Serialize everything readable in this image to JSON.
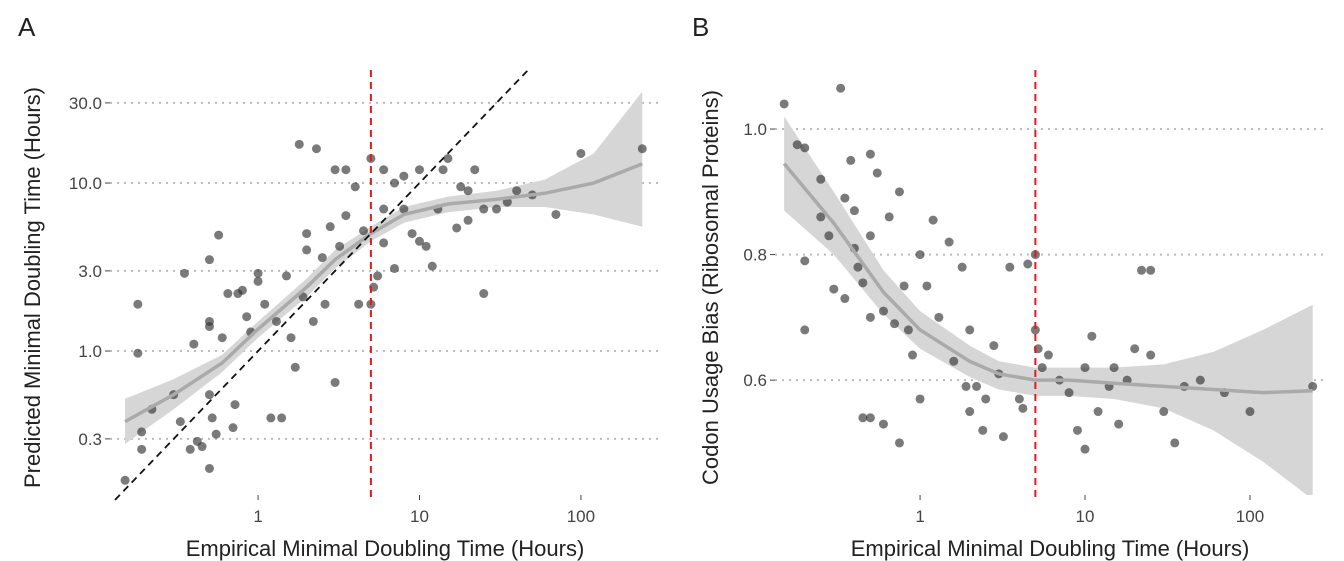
{
  "chart_data": [
    {
      "type": "scatter",
      "label": "A",
      "xlabel": "Empirical Minimal Doubling Time (Hours)",
      "ylabel": "Predicted Minimal Doubling Time (Hours)",
      "xscale": "log",
      "yscale": "log",
      "xlim": [
        0.121,
        309
      ],
      "ylim": [
        0.139,
        54
      ],
      "xticks": [
        1,
        10,
        100
      ],
      "yticks": [
        {
          "value": 0.3,
          "label": "0.3"
        },
        {
          "value": 1,
          "label": "1.0"
        },
        {
          "value": 3,
          "label": "3.0"
        },
        {
          "value": 10,
          "label": "10.0"
        },
        {
          "value": 30,
          "label": "30.0"
        }
      ],
      "grid": true,
      "color": "#333333",
      "vline": 5,
      "vline_color": "#e31a1c",
      "identity_range": [
        0.13,
        48
      ],
      "x": [
        0.15,
        0.18,
        0.18,
        0.19,
        0.19,
        0.22,
        0.3,
        0.33,
        0.35,
        0.38,
        0.4,
        0.42,
        0.45,
        0.5,
        0.5,
        0.5,
        0.5,
        0.5,
        0.52,
        0.55,
        0.57,
        0.6,
        0.65,
        0.7,
        0.72,
        0.75,
        0.8,
        0.85,
        0.9,
        1.0,
        1.0,
        1.1,
        1.2,
        1.3,
        1.4,
        1.5,
        1.6,
        1.7,
        1.8,
        1.9,
        2.0,
        2.0,
        2.2,
        2.3,
        2.5,
        2.6,
        2.8,
        3.0,
        3.0,
        3.2,
        3.5,
        3.5,
        4.0,
        4.2,
        4.5,
        5.0,
        5.0,
        5.2,
        5.5,
        6,
        6,
        6,
        7,
        7,
        8,
        8,
        9,
        10,
        10,
        11,
        12,
        13,
        14,
        15,
        17,
        18,
        20,
        20,
        22,
        25,
        25,
        30,
        35,
        40,
        50,
        70,
        100,
        240
      ],
      "values": [
        0.17,
        1.9,
        0.97,
        0.33,
        0.26,
        0.45,
        0.55,
        0.38,
        2.9,
        0.26,
        1.1,
        0.29,
        0.27,
        1.5,
        1.4,
        3.5,
        0.2,
        0.55,
        0.4,
        0.32,
        4.9,
        1.2,
        2.2,
        0.35,
        0.48,
        2.2,
        2.3,
        1.6,
        1.3,
        2.6,
        2.9,
        1.9,
        0.4,
        1.5,
        0.4,
        2.8,
        1.2,
        0.8,
        17,
        2.1,
        4.0,
        5.0,
        1.5,
        16,
        3.6,
        1.9,
        5.5,
        0.65,
        12,
        4.2,
        12,
        6.4,
        9.5,
        1.9,
        5.2,
        14,
        1.9,
        2.4,
        2.8,
        7,
        12,
        4.4,
        3.1,
        10,
        11,
        7,
        5,
        4.5,
        12,
        4.2,
        3.2,
        7,
        12,
        14,
        5.4,
        9.5,
        6,
        9,
        12,
        2.2,
        7,
        7,
        7.7,
        9,
        8.5,
        6.5,
        15,
        16
      ],
      "smooth": {
        "x": [
          0.15,
          0.3,
          0.6,
          1,
          2,
          3,
          5,
          8,
          15,
          30,
          60,
          120,
          240
        ],
        "y": [
          0.38,
          0.55,
          0.85,
          1.35,
          2.4,
          3.5,
          5,
          6.5,
          7.5,
          8,
          8.7,
          10,
          13
        ],
        "lower": [
          0.28,
          0.45,
          0.75,
          1.2,
          2.1,
          3.1,
          4.5,
          5.8,
          6.7,
          7.2,
          7.2,
          6.5,
          5.5
        ],
        "upper": [
          0.52,
          0.68,
          0.95,
          1.5,
          2.7,
          4,
          5.5,
          7.2,
          8.3,
          9,
          10.5,
          15,
          35
        ]
      }
    },
    {
      "type": "scatter",
      "label": "B",
      "xlabel": "Empirical Minimal Doubling Time (Hours)",
      "ylabel": "Codon Usage Bias (Ribosomal Proteins)",
      "xscale": "log",
      "yscale": "linear",
      "xlim": [
        0.132,
        285
      ],
      "ylim": [
        0.417,
        1.11
      ],
      "xticks": [
        1,
        10,
        100
      ],
      "yticks": [
        0.6,
        0.8,
        {
          "value": 1,
          "label": "1.0"
        }
      ],
      "grid": true,
      "color": "#333333",
      "vline": 5,
      "vline_color": "#e31a1c",
      "x": [
        0.15,
        0.18,
        0.2,
        0.2,
        0.2,
        0.25,
        0.25,
        0.28,
        0.3,
        0.33,
        0.35,
        0.35,
        0.38,
        0.4,
        0.4,
        0.42,
        0.45,
        0.45,
        0.5,
        0.5,
        0.5,
        0.5,
        0.55,
        0.6,
        0.6,
        0.65,
        0.7,
        0.75,
        0.75,
        0.8,
        0.85,
        0.9,
        1.0,
        1.0,
        1.1,
        1.2,
        1.3,
        1.5,
        1.6,
        1.8,
        1.9,
        2.0,
        2.0,
        2.2,
        2.4,
        2.5,
        2.8,
        3.0,
        3.2,
        3.5,
        4.0,
        4.2,
        4.5,
        5.0,
        5.0,
        5.2,
        5.5,
        6,
        7,
        8,
        9,
        10,
        10,
        11,
        12,
        14,
        15,
        16,
        18,
        20,
        22,
        25,
        25,
        30,
        35,
        40,
        50,
        70,
        100,
        240
      ],
      "values": [
        1.04,
        0.975,
        0.97,
        0.79,
        0.68,
        0.92,
        0.86,
        0.83,
        0.745,
        1.065,
        0.89,
        0.73,
        0.95,
        0.87,
        0.81,
        0.78,
        0.755,
        0.54,
        0.96,
        0.83,
        0.7,
        0.54,
        0.93,
        0.53,
        0.71,
        0.86,
        0.69,
        0.9,
        0.5,
        0.75,
        0.68,
        0.64,
        0.8,
        0.57,
        0.75,
        0.855,
        0.7,
        0.82,
        0.63,
        0.78,
        0.59,
        0.68,
        0.55,
        0.59,
        0.52,
        0.57,
        0.655,
        0.61,
        0.51,
        0.78,
        0.57,
        0.555,
        0.785,
        0.8,
        0.68,
        0.65,
        0.62,
        0.64,
        0.6,
        0.58,
        0.52,
        0.49,
        0.62,
        0.67,
        0.55,
        0.59,
        0.62,
        0.53,
        0.6,
        0.65,
        0.775,
        0.64,
        0.775,
        0.55,
        0.5,
        0.59,
        0.6,
        0.58,
        0.55,
        0.59
      ],
      "smooth": {
        "x": [
          0.15,
          0.3,
          0.6,
          1,
          2,
          3,
          5,
          8,
          15,
          30,
          60,
          120,
          240
        ],
        "y": [
          0.945,
          0.85,
          0.74,
          0.68,
          0.63,
          0.61,
          0.6,
          0.6,
          0.595,
          0.59,
          0.585,
          0.58,
          0.583
        ],
        "lower": [
          0.87,
          0.8,
          0.705,
          0.65,
          0.605,
          0.585,
          0.575,
          0.575,
          0.57,
          0.555,
          0.52,
          0.47,
          0.41
        ],
        "upper": [
          1.02,
          0.9,
          0.775,
          0.71,
          0.655,
          0.63,
          0.62,
          0.62,
          0.62,
          0.625,
          0.645,
          0.68,
          0.72
        ]
      }
    }
  ]
}
